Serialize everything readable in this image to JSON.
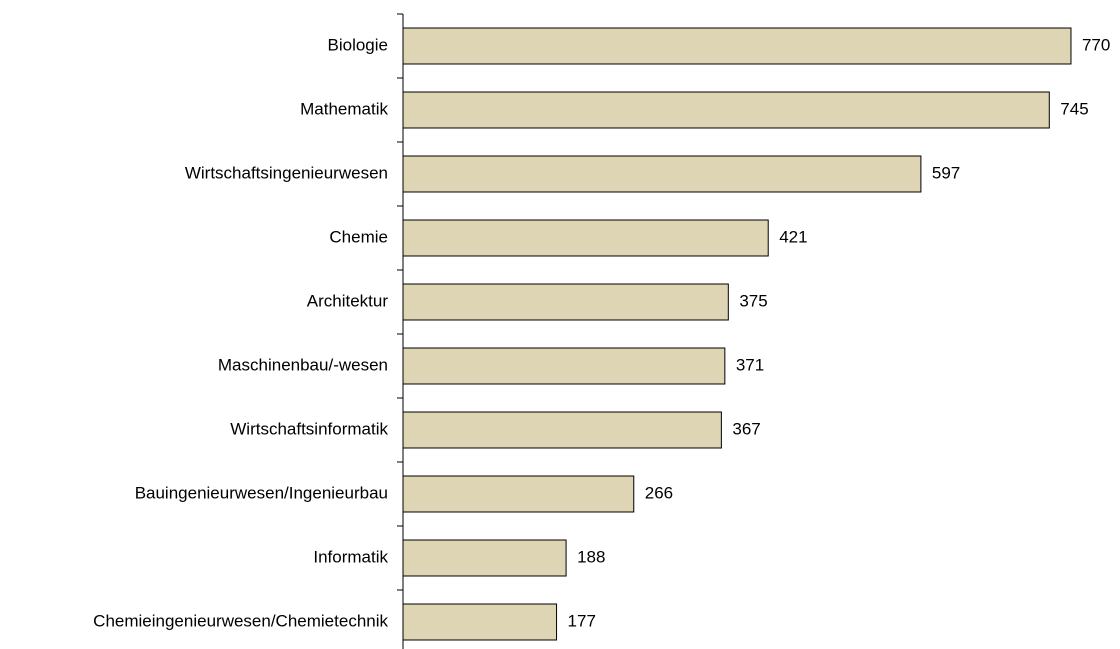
{
  "chart_data": {
    "type": "hbar",
    "categories": [
      "Biologie",
      "Mathematik",
      "Wirtschaftsingenieurwesen",
      "Chemie",
      "Architektur",
      "Maschinenbau/-wesen",
      "Wirtschaftsinformatik",
      "Bauingenieurwesen/Ingenieurbau",
      "Informatik",
      "Chemieingenieurwesen/Chemietechnik"
    ],
    "values": [
      770,
      745,
      597,
      421,
      375,
      371,
      367,
      266,
      188,
      177
    ],
    "color": "#ddd5b3",
    "xlim": [
      0,
      800
    ]
  }
}
